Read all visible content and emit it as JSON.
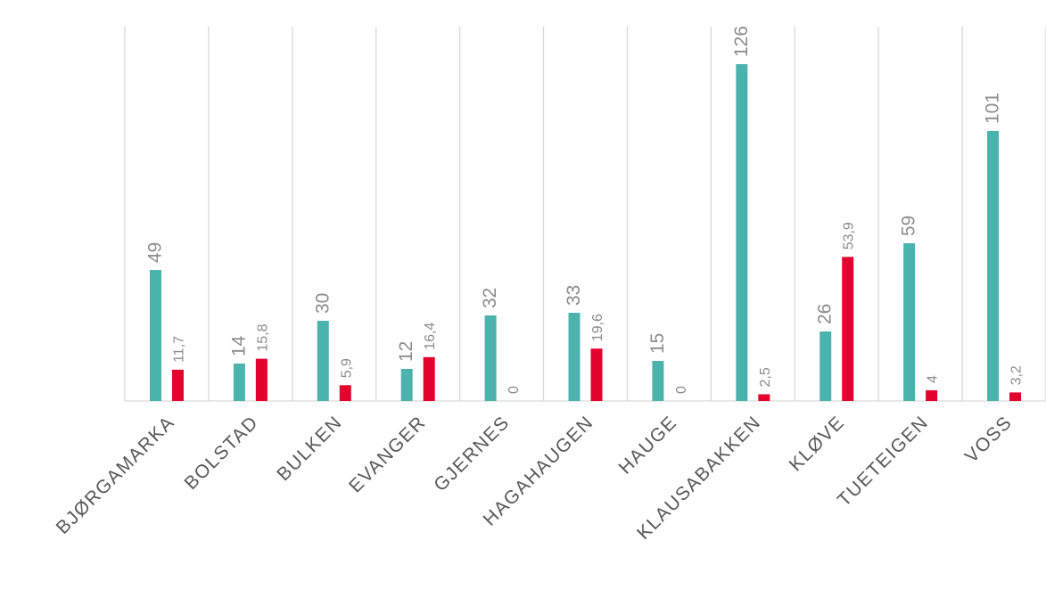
{
  "chart_data": {
    "type": "bar",
    "title": "",
    "xlabel": "",
    "ylabel": "",
    "categories": [
      "BJØRGAMARKA",
      "BOLSTAD",
      "BULKEN",
      "EVANGER",
      "GJERNES",
      "HAGAHAUGEN",
      "HAUGE",
      "KLAUSABAKKEN",
      "KLØVE",
      "TUETEIGEN",
      "VOSS"
    ],
    "series": [
      {
        "values": [
          49,
          14,
          30,
          12,
          32,
          33,
          15,
          126,
          26,
          59,
          101
        ],
        "labels": [
          "49",
          "14",
          "30",
          "12",
          "32",
          "33",
          "15",
          "126",
          "26",
          "59",
          "101"
        ],
        "color": "#4bb3ad"
      },
      {
        "values": [
          11.7,
          15.8,
          5.9,
          16.4,
          0,
          19.6,
          0,
          2.5,
          53.9,
          4,
          3.2
        ],
        "labels": [
          "11,7",
          "15,8",
          "5,9",
          "16,4",
          "0",
          "19,6",
          "0",
          "2,5",
          "53,9",
          "4",
          "3,2"
        ],
        "color": "#e4032e"
      }
    ],
    "ylim": [
      0,
      140
    ],
    "grid": "vertical-separators",
    "legend": "none",
    "label_color": "#8c8c8c",
    "grid_color": "#d9d9d9"
  }
}
